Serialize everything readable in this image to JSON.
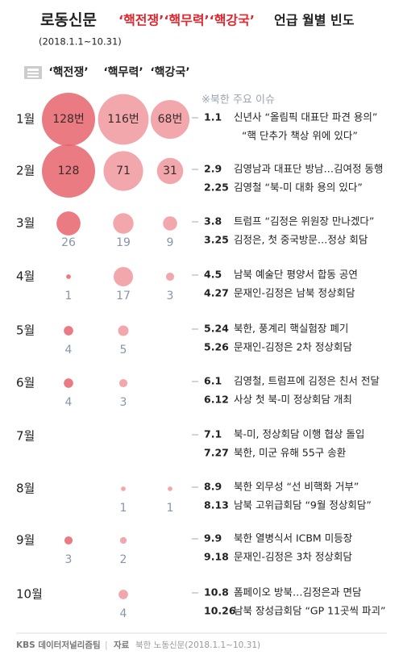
{
  "chart_data": {
    "type": "bubble",
    "title_source": "로동신문",
    "title_terms": "‘핵전쟁’‘핵무력’‘핵강국’",
    "title": "언급 월별 빈도",
    "subtitle": "(2018.1.1~10.31)",
    "note": "※북한 주요 이슈",
    "categories": [
      "1월",
      "2월",
      "3월",
      "4월",
      "5월",
      "6월",
      "7월",
      "8월",
      "9월",
      "10월"
    ],
    "series": [
      {
        "name": "‘핵전쟁’",
        "color": "#e8646c",
        "values": [
          128,
          128,
          26,
          1,
          4,
          4,
          null,
          null,
          3,
          null
        ],
        "value_labels": [
          "128번",
          "128",
          "26",
          "1",
          "4",
          "4",
          null,
          null,
          "3",
          null
        ]
      },
      {
        "name": "‘핵무력’",
        "color": "#ec8a90",
        "values": [
          116,
          71,
          19,
          17,
          5,
          3,
          null,
          1,
          2,
          4
        ],
        "value_labels": [
          "116번",
          "71",
          "19",
          "17",
          "5",
          "3",
          null,
          "1",
          "2",
          "4"
        ]
      },
      {
        "name": "‘핵강국’",
        "color": "#ec8a90",
        "values": [
          68,
          31,
          9,
          3,
          null,
          null,
          null,
          1,
          null,
          null
        ],
        "value_labels": [
          "68번",
          "31",
          "9",
          "3",
          null,
          null,
          null,
          "1",
          null,
          null
        ]
      }
    ],
    "events": [
      [
        {
          "date": "1.1",
          "text": "신년사 “올림픽 대표단 파견 용의”"
        },
        {
          "date": null,
          "text": "“핵 단추가 책상 위에 있다”"
        }
      ],
      [
        {
          "date": "2.9",
          "text": "김영남과 대표단 방남…김여정 동행"
        },
        {
          "date": "2.25",
          "text": "김영철 “북-미 대화 용의 있다”"
        }
      ],
      [
        {
          "date": "3.8",
          "text": "트럼프 “김정은 위원장 만나겠다”"
        },
        {
          "date": "3.25",
          "text": "김정은, 첫 중국방문…정상 회담"
        }
      ],
      [
        {
          "date": "4.5",
          "text": "남북 예술단 평양서 합동 공연"
        },
        {
          "date": "4.27",
          "text": "문재인-김정은 남북 정상회담"
        }
      ],
      [
        {
          "date": "5.24",
          "text": "북한, 풍계리 핵실험장 폐기"
        },
        {
          "date": "5.26",
          "text": "문재인-김정은 2차 정상회담"
        }
      ],
      [
        {
          "date": "6.1",
          "text": "김영철, 트럼프에 김정은 친서 전달"
        },
        {
          "date": "6.12",
          "text": "사상 첫 북-미 정상회담 개최"
        }
      ],
      [
        {
          "date": "7.1",
          "text": "북-미, 정상회담 이행 협상 돌입"
        },
        {
          "date": "7.27",
          "text": "북한, 미군 유해 55구 송환"
        }
      ],
      [
        {
          "date": "8.9",
          "text": "북한 외무성 “선 비핵화 거부”"
        },
        {
          "date": "8.13",
          "text": "남북 고위급회담 “9월 정상회담”"
        }
      ],
      [
        {
          "date": "9.9",
          "text": "북한 열병식서 ICBM 미등장"
        },
        {
          "date": "9.18",
          "text": "문재인-김정은 3차 정상회담"
        }
      ],
      [
        {
          "date": "10.8",
          "text": "폼페이오 방북…김정은과 면담"
        },
        {
          "date": "10.26",
          "text": "남북 장성급회담 “GP 11곳씩 파괴”"
        }
      ]
    ],
    "footer_credit": "KBS 데이터저널리즘팀",
    "footer_source_label": "자료",
    "footer_source": "북한 노동신문(2018.1.1~10.31)"
  }
}
